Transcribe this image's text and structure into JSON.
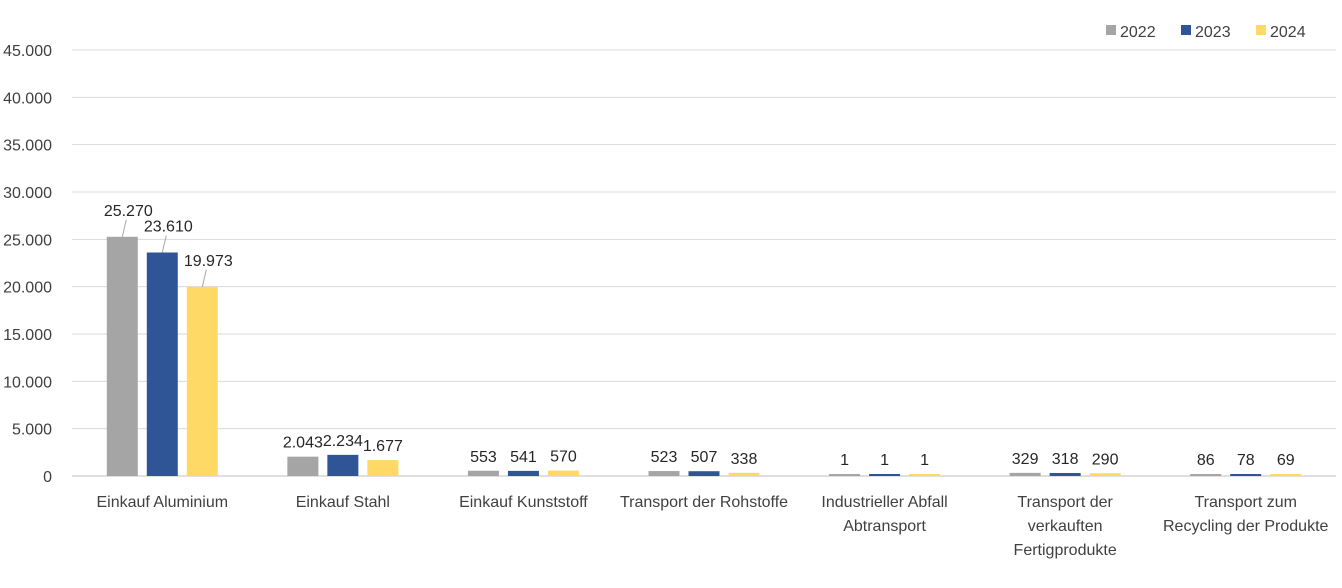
{
  "chart_data": {
    "type": "bar",
    "categories": [
      [
        "Einkauf Aluminium"
      ],
      [
        "Einkauf Stahl"
      ],
      [
        "Einkauf Kunststoff"
      ],
      [
        "Transport der Rohstoffe"
      ],
      [
        "Industrieller Abfall",
        "Abtransport"
      ],
      [
        "Transport der",
        "verkauften",
        "Fertigprodukte"
      ],
      [
        "Transport zum",
        "Recycling der Produkte"
      ]
    ],
    "series": [
      {
        "name": "2022",
        "color": "#a5a5a5",
        "values": [
          25270,
          2043,
          553,
          523,
          1,
          329,
          86
        ],
        "labels": [
          "25.270",
          "2.043",
          "553",
          "523",
          "1",
          "329",
          "86"
        ]
      },
      {
        "name": "2023",
        "color": "#2f5597",
        "values": [
          23610,
          2234,
          541,
          507,
          1,
          318,
          78
        ],
        "labels": [
          "23.610",
          "2.234",
          "541",
          "507",
          "1",
          "318",
          "78"
        ]
      },
      {
        "name": "2024",
        "color": "#ffd966",
        "values": [
          19973,
          1677,
          570,
          338,
          1,
          290,
          69
        ],
        "labels": [
          "19.973",
          "1.677",
          "570",
          "338",
          "1",
          "290",
          "69"
        ]
      }
    ],
    "yticks": [
      {
        "value": 0,
        "label": "0"
      },
      {
        "value": 5000,
        "label": "5.000"
      },
      {
        "value": 10000,
        "label": "10.000"
      },
      {
        "value": 15000,
        "label": "15.000"
      },
      {
        "value": 20000,
        "label": "20.000"
      },
      {
        "value": 25000,
        "label": "25.000"
      },
      {
        "value": 30000,
        "label": "30.000"
      },
      {
        "value": 35000,
        "label": "35.000"
      },
      {
        "value": 40000,
        "label": "40.000"
      },
      {
        "value": 45000,
        "label": "45.000"
      }
    ],
    "ylim": [
      0,
      45000
    ],
    "grid": true,
    "legend_position": "top-right"
  }
}
